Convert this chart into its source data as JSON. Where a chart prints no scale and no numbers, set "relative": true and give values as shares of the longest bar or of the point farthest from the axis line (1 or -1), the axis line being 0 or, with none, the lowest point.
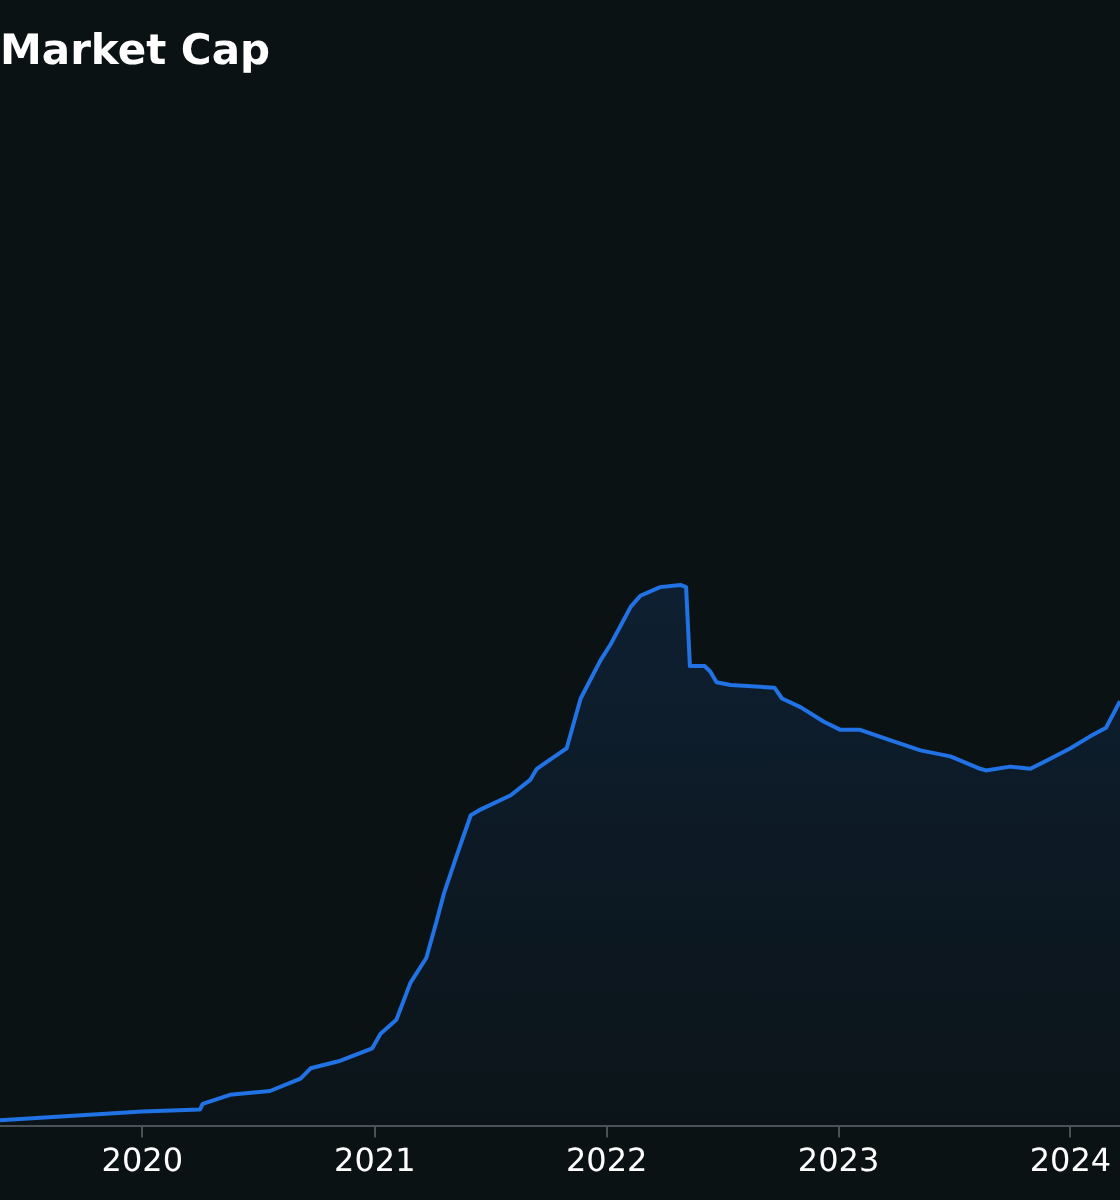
{
  "chart_data": {
    "type": "area",
    "title": "Market Cap",
    "relative": true,
    "x": [
      "2019-05-22",
      "2020-01-01",
      "2020-04-01",
      "2020-04-05",
      "2020-05-18",
      "2020-07-20",
      "2020-09-06",
      "2020-09-22",
      "2020-11-08",
      "2020-12-28",
      "2021-01-10",
      "2021-02-04",
      "2021-02-26",
      "2021-03-23",
      "2021-04-08",
      "2021-04-20",
      "2021-05-10",
      "2021-06-01",
      "2021-06-17",
      "2021-08-03",
      "2021-09-03",
      "2021-09-13",
      "2021-10-20",
      "2021-10-30",
      "2021-11-21",
      "2021-12-22",
      "2022-01-07",
      "2022-02-08",
      "2022-02-23",
      "2022-03-26",
      "2022-04-27",
      "2022-05-06",
      "2022-05-12",
      "2022-06-04",
      "2022-06-13",
      "2022-06-23",
      "2022-07-15",
      "2022-09-22",
      "2022-10-04",
      "2022-11-02",
      "2022-12-09",
      "2023-01-04",
      "2023-02-04",
      "2023-03-23",
      "2023-05-10",
      "2023-06-26",
      "2023-08-12",
      "2023-08-21",
      "2023-09-28",
      "2023-10-30",
      "2023-12-01",
      "2024-01-01",
      "2024-02-01",
      "2024-02-26",
      "2024-03-19"
    ],
    "series": [
      {
        "color": "#2172e5",
        "values": [
          0.01,
          0.026,
          0.03,
          0.04,
          0.057,
          0.064,
          0.087,
          0.106,
          0.12,
          0.143,
          0.17,
          0.196,
          0.264,
          0.31,
          0.377,
          0.43,
          0.5,
          0.574,
          0.585,
          0.611,
          0.64,
          0.66,
          0.69,
          0.698,
          0.79,
          0.86,
          0.89,
          0.96,
          0.98,
          0.996,
          1.0,
          0.996,
          0.85,
          0.85,
          0.84,
          0.82,
          0.815,
          0.81,
          0.79,
          0.774,
          0.747,
          0.732,
          0.732,
          0.713,
          0.694,
          0.683,
          0.66,
          0.657,
          0.664,
          0.66,
          0.679,
          0.698,
          0.72,
          0.736,
          0.785
        ]
      }
    ],
    "xlim": [
      "2019-05-22",
      "2024-03-19"
    ],
    "xticks": [
      "2020",
      "2021",
      "2022",
      "2023",
      "2024"
    ],
    "grid": false,
    "legend": false,
    "marker": "none",
    "line_style": "solid"
  }
}
